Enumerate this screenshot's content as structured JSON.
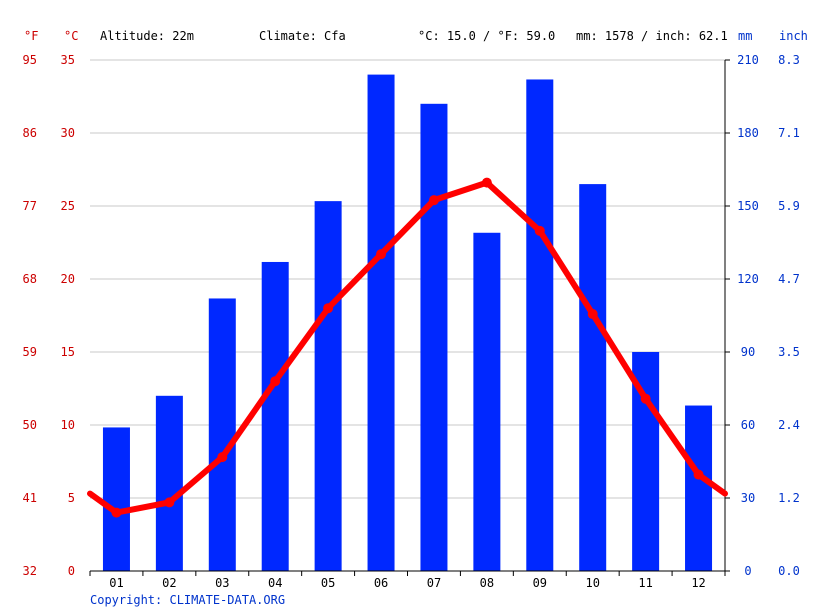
{
  "header": {
    "unit_f": "°F",
    "unit_c": "°C",
    "altitude": "Altitude: 22m",
    "climate": "Climate: Cfa",
    "avg_temp": "°C: 15.0 / °F: 59.0",
    "precip_total": "mm: 1578 / inch: 62.1",
    "unit_mm": "mm",
    "unit_inch": "inch"
  },
  "copyright": "Copyright: CLIMATE-DATA.ORG",
  "colors": {
    "temperature": "#ff0000",
    "precipitation": "#0028ff",
    "axis_left": "#cc0000",
    "axis_right": "#0033cc",
    "grid": "#c8c8c8",
    "text": "#000000"
  },
  "chart_data": {
    "type": "bar+line",
    "categories": [
      "01",
      "02",
      "03",
      "04",
      "05",
      "06",
      "07",
      "08",
      "09",
      "10",
      "11",
      "12"
    ],
    "series": [
      {
        "kind": "bar",
        "axis": "right",
        "values": [
          59,
          72,
          112,
          127,
          152,
          204,
          192,
          139,
          202,
          159,
          90,
          68
        ]
      },
      {
        "kind": "line",
        "axis": "left",
        "values": [
          4.0,
          4.7,
          7.8,
          13.0,
          18.0,
          21.7,
          25.4,
          26.6,
          23.3,
          17.6,
          11.8,
          6.6
        ]
      }
    ],
    "line_edge_values": {
      "start": 5.3,
      "end": 5.3
    },
    "y_left_celsius": {
      "ticks": [
        0,
        5,
        10,
        15,
        20,
        25,
        30,
        35
      ],
      "range": [
        0,
        35
      ]
    },
    "y_left_fahrenheit": {
      "ticks": [
        32,
        41,
        50,
        59,
        68,
        77,
        86,
        95
      ]
    },
    "y_right_mm": {
      "ticks": [
        0,
        30,
        60,
        90,
        120,
        150,
        180,
        210
      ],
      "range": [
        0,
        210
      ]
    },
    "y_right_inch": {
      "ticks": [
        "0.0",
        "1.2",
        "2.4",
        "3.5",
        "4.7",
        "5.9",
        "7.1",
        "8.3"
      ]
    },
    "grid": true
  }
}
